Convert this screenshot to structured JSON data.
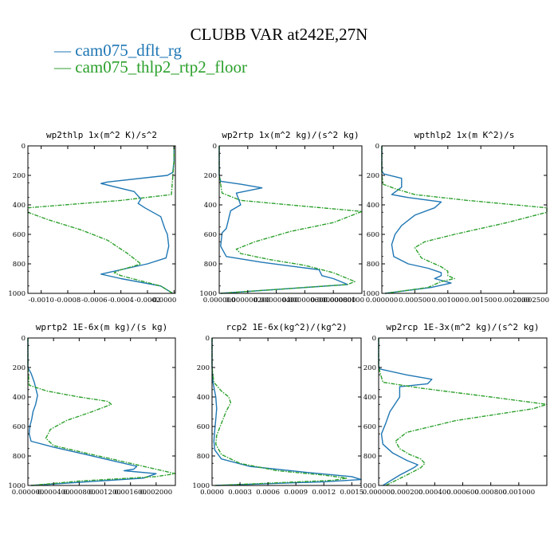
{
  "figure": {
    "title": "CLUBB VAR at242E,27N",
    "legend": [
      {
        "label": "cam075_dflt_rg",
        "color": "#1f77b4"
      },
      {
        "label": "cam075_thlp2_rtp2_floor",
        "color": "#2ca02c"
      }
    ]
  },
  "chart_data": [
    {
      "type": "line",
      "title": "wp2thlp   1x(m^2 K)/s^2",
      "xlim": [
        -0.0011,
        1e-05
      ],
      "ylim": [
        1000,
        0
      ],
      "xticks": [
        -0.001,
        -0.0008,
        -0.0006,
        -0.0004,
        -0.0002,
        0
      ],
      "xticklabels": [
        "-0.0010",
        "-0.0008",
        "-0.0006",
        "-0.0004",
        "-0.0002",
        "-0.0000"
      ],
      "yticks": [
        0,
        200,
        400,
        600,
        800,
        1000
      ],
      "yticklabels": [
        "0",
        "200",
        "400",
        "600",
        "800",
        "1000"
      ],
      "series": [
        {
          "name": "cam075_dflt_rg",
          "style": "solid",
          "color": "#1f77b4",
          "x": [
            0,
            0,
            -1e-05,
            -5e-05,
            -0.0005,
            -0.00055,
            -0.0003,
            -0.00025,
            -0.00027,
            -0.00022,
            -0.0001,
            -7e-05,
            -5e-05,
            -4e-05,
            -6e-05,
            -0.0002,
            -0.00035,
            -0.0005,
            -0.00055,
            -0.0004,
            -0.0001,
            -1e-05
          ],
          "y": [
            0,
            100,
            180,
            200,
            245,
            255,
            310,
            360,
            390,
            420,
            480,
            560,
            600,
            680,
            760,
            800,
            830,
            860,
            870,
            900,
            950,
            1000
          ]
        },
        {
          "name": "cam075_thlp2_rtp2_floor",
          "style": "dashed",
          "color": "#2ca02c",
          "x": [
            0,
            0,
            -2e-05,
            -0.0004,
            -0.0011,
            -0.0011,
            -0.00095,
            -0.0007,
            -0.0005,
            -0.00035,
            -0.00025,
            -0.00032,
            -0.0004,
            -0.00045,
            -0.0004,
            -0.0001,
            -1e-05
          ],
          "y": [
            0,
            100,
            330,
            370,
            420,
            450,
            500,
            570,
            640,
            730,
            800,
            820,
            840,
            860,
            880,
            950,
            1000
          ]
        }
      ]
    },
    {
      "type": "line",
      "title": "wp2rtp   1x(m^2 kg)/(s^2 kg)",
      "xlim": [
        0,
        1e-06
      ],
      "ylim": [
        1000,
        0
      ],
      "xticks": [
        0,
        2e-07,
        4e-07,
        6e-07,
        8e-07,
        1e-06
      ],
      "xticklabels": [
        "0.000000",
        "0.000000200",
        "0.000000400",
        "0.000000600",
        "0.000000800",
        "0.00000100"
      ],
      "yticks": [
        0,
        200,
        400,
        600,
        800,
        1000
      ],
      "yticklabels": [
        "0",
        "200",
        "400",
        "600",
        "800",
        "1000"
      ],
      "series": [
        {
          "name": "cam075_dflt_rg",
          "style": "solid",
          "color": "#1f77b4",
          "x": [
            0,
            0,
            1e-08,
            1.5e-07,
            3e-07,
            1.2e-07,
            1.5e-07,
            8e-08,
            5e-08,
            2e-08,
            1e-08,
            5e-08,
            3e-07,
            7e-07,
            7.2e-07,
            8e-07,
            9e-07,
            1e-08
          ],
          "y": [
            0,
            200,
            240,
            260,
            285,
            320,
            400,
            440,
            560,
            590,
            680,
            750,
            790,
            840,
            880,
            900,
            940,
            1000
          ]
        },
        {
          "name": "cam075_thlp2_rtp2_floor",
          "style": "dashed",
          "color": "#2ca02c",
          "x": [
            0,
            0,
            2e-08,
            1.5e-07,
            1e-06,
            8e-07,
            5e-07,
            2.5e-07,
            1.2e-07,
            1.5e-07,
            3.5e-07,
            6e-07,
            8e-07,
            9.5e-07,
            9e-07,
            3e-07,
            1e-08
          ],
          "y": [
            0,
            200,
            320,
            370,
            445,
            520,
            580,
            650,
            700,
            730,
            770,
            810,
            860,
            920,
            940,
            980,
            1000
          ]
        }
      ]
    },
    {
      "type": "line",
      "title": "wpthlp2   1x(m K^2)/s",
      "xlim": [
        0,
        0.0025
      ],
      "ylim": [
        1000,
        0
      ],
      "xticks": [
        0,
        0.0005,
        0.001,
        0.0015,
        0.002,
        0.0025
      ],
      "xticklabels": [
        "0.000000",
        "0.000500",
        "0.001000",
        "0.001500",
        "0.002000",
        "0.002500"
      ],
      "yticks": [
        0,
        200,
        400,
        600,
        800,
        1000
      ],
      "yticklabels": [
        "0",
        "200",
        "400",
        "600",
        "800",
        "1000"
      ],
      "series": [
        {
          "name": "cam075_dflt_rg",
          "style": "solid",
          "color": "#1f77b4",
          "x": [
            0,
            0,
            3e-05,
            0.0003,
            0.0003,
            0.00015,
            0.0004,
            0.0009,
            0.0008,
            0.0005,
            0.0003,
            0.0002,
            0.00015,
            0.00018,
            0.0004,
            0.0007,
            0.0009,
            0.0009,
            0.0008,
            0.00105,
            0.00075,
            5e-05
          ],
          "y": [
            0,
            170,
            190,
            220,
            280,
            330,
            350,
            380,
            420,
            470,
            540,
            600,
            670,
            750,
            800,
            830,
            860,
            880,
            900,
            930,
            960,
            1000
          ]
        },
        {
          "name": "cam075_thlp2_rtp2_floor",
          "style": "dashed",
          "color": "#2ca02c",
          "x": [
            0,
            0,
            2e-05,
            0.0002,
            0.0005,
            0.0013,
            0.0025,
            0.0025,
            0.0019,
            0.0011,
            0.00065,
            0.0005,
            0.0006,
            0.0009,
            0.001,
            0.001,
            0.0011,
            0.0009,
            0.0007,
            5e-05
          ],
          "y": [
            0,
            200,
            260,
            290,
            330,
            370,
            420,
            450,
            520,
            600,
            650,
            690,
            760,
            820,
            850,
            880,
            900,
            920,
            960,
            1000
          ]
        }
      ]
    },
    {
      "type": "line",
      "title": "wprtp2   1E-6x(m kg)/(s kg)",
      "xlim": [
        0,
        0.0023
      ],
      "ylim": [
        1000,
        0
      ],
      "xticks": [
        0,
        0.0004,
        0.0008,
        0.0012,
        0.0016,
        0.002
      ],
      "xticklabels": [
        "0.000000",
        "0.000400",
        "0.000800",
        "0.001200",
        "0.001600",
        "0.002000"
      ],
      "yticks": [
        0,
        200,
        400,
        600,
        800,
        1000
      ],
      "yticklabels": [
        "0",
        "200",
        "400",
        "600",
        "800",
        "1000"
      ],
      "series": [
        {
          "name": "cam075_dflt_rg",
          "style": "solid",
          "color": "#1f77b4",
          "x": [
            0,
            0,
            5e-05,
            0.0001,
            0.00015,
            0.00012,
            8e-05,
            6e-05,
            3e-05,
            2e-05,
            5e-05,
            0.0004,
            0.0009,
            0.0014,
            0.0017,
            0.00165,
            0.0015,
            0.002,
            0.0018,
            5e-05
          ],
          "y": [
            0,
            200,
            240,
            300,
            390,
            450,
            500,
            550,
            600,
            650,
            700,
            740,
            790,
            840,
            870,
            890,
            900,
            920,
            950,
            1000
          ]
        },
        {
          "name": "cam075_thlp2_rtp2_floor",
          "style": "dashed",
          "color": "#2ca02c",
          "x": [
            0,
            0,
            2e-05,
            0.0003,
            0.0008,
            0.00125,
            0.0013,
            0.001,
            0.0006,
            0.00035,
            0.00028,
            0.0004,
            0.0009,
            0.0014,
            0.0019,
            0.0023,
            0.002,
            0.0008,
            5e-05
          ],
          "y": [
            0,
            200,
            320,
            360,
            400,
            430,
            450,
            500,
            560,
            620,
            680,
            730,
            780,
            830,
            880,
            920,
            940,
            970,
            1000
          ]
        }
      ]
    },
    {
      "type": "line",
      "title": "rcp2   1E-6x(kg^2)/(kg^2)",
      "xlim": [
        0,
        0.0016
      ],
      "ylim": [
        1000,
        0
      ],
      "xticks": [
        0,
        0.0003,
        0.0006,
        0.0009,
        0.0012,
        0.0015
      ],
      "xticklabels": [
        "0.0000",
        "0.0003",
        "0.0006",
        "0.0009",
        "0.0012",
        "0.0015"
      ],
      "yticks": [
        0,
        200,
        400,
        600,
        800,
        1000
      ],
      "yticklabels": [
        "0",
        "200",
        "400",
        "600",
        "800",
        "1000"
      ],
      "series": [
        {
          "name": "cam075_dflt_rg",
          "style": "solid",
          "color": "#1f77b4",
          "x": [
            0,
            0,
            1e-05,
            4e-05,
            5e-05,
            4e-05,
            3e-05,
            2e-05,
            3e-05,
            0.0001,
            0.0004,
            0.001,
            0.0015,
            0.0016,
            0.0012,
            5e-05
          ],
          "y": [
            0,
            200,
            300,
            400,
            480,
            550,
            620,
            700,
            760,
            820,
            870,
            910,
            940,
            960,
            975,
            1000
          ]
        },
        {
          "name": "cam075_thlp2_rtp2_floor",
          "style": "dashed",
          "color": "#2ca02c",
          "x": [
            0,
            0,
            2e-05,
            0.0001,
            0.00018,
            0.0002,
            0.00015,
            0.0001,
            5e-05,
            4e-05,
            0.0001,
            0.0003,
            0.0007,
            0.0012,
            0.00145,
            0.0013,
            0.0006,
            3e-05
          ],
          "y": [
            0,
            200,
            300,
            360,
            400,
            440,
            500,
            580,
            660,
            720,
            790,
            850,
            900,
            930,
            950,
            965,
            985,
            1000
          ]
        }
      ]
    },
    {
      "type": "line",
      "title": "wp2rcp   1E-3x(m^2 kg)/(s^2 kg)",
      "xlim": [
        0,
        0.0012
      ],
      "ylim": [
        1000,
        0
      ],
      "xticks": [
        0,
        0.0002,
        0.0004,
        0.0006,
        0.0008,
        0.001
      ],
      "xticklabels": [
        "0.000000",
        "0.000200",
        "0.000400",
        "0.000600",
        "0.000800",
        "0.001000"
      ],
      "yticks": [
        0,
        200,
        400,
        600,
        800,
        1000
      ],
      "yticklabels": [
        "0",
        "200",
        "400",
        "600",
        "800",
        "1000"
      ],
      "series": [
        {
          "name": "cam075_dflt_rg",
          "style": "solid",
          "color": "#1f77b4",
          "x": [
            0,
            0,
            1e-05,
            0.0002,
            0.00038,
            0.00035,
            0.00015,
            0.00015,
            8e-05,
            5e-05,
            2e-05,
            3e-05,
            0.0001,
            0.0002,
            0.00028,
            0.00025,
            0.00015,
            3e-05
          ],
          "y": [
            0,
            190,
            210,
            250,
            280,
            310,
            330,
            400,
            500,
            580,
            650,
            720,
            780,
            830,
            860,
            880,
            930,
            1000
          ]
        },
        {
          "name": "cam075_thlp2_rtp2_floor",
          "style": "dashed",
          "color": "#2ca02c",
          "x": [
            0,
            0,
            3e-05,
            0.0003,
            0.0008,
            0.0012,
            0.0011,
            0.00055,
            0.0002,
            0.00012,
            0.00015,
            0.00022,
            0.0003,
            0.00033,
            0.0003,
            0.0002,
            5e-05
          ],
          "y": [
            0,
            200,
            300,
            340,
            400,
            450,
            480,
            560,
            640,
            700,
            750,
            790,
            820,
            850,
            880,
            930,
            1000
          ]
        }
      ]
    }
  ]
}
